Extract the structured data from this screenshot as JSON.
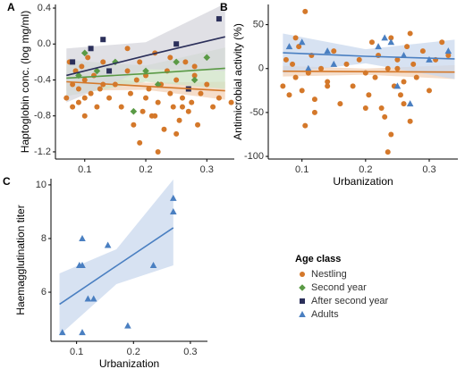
{
  "chart_data": [
    {
      "type": "scatter",
      "panel": "A",
      "ylabel": "Haptoglobin conc. (log mg/ml)",
      "xlim": [
        0.052,
        0.345
      ],
      "ylim": [
        -1.28,
        0.44
      ],
      "xticks": [
        0.1,
        0.2,
        0.3
      ],
      "yticks": [
        0.4,
        {
          "value": 0,
          "label": "0.0"
        },
        -0.4,
        -0.8,
        -1.2
      ],
      "series": [
        {
          "marker": "circle",
          "color": "#d4782a",
          "x": [
            0.07,
            0.075,
            0.08,
            0.08,
            0.085,
            0.09,
            0.09,
            0.095,
            0.1,
            0.1,
            0.105,
            0.11,
            0.115,
            0.12,
            0.125,
            0.13,
            0.14,
            0.15,
            0.16,
            0.17,
            0.175,
            0.18,
            0.185,
            0.19,
            0.195,
            0.2,
            0.2,
            0.205,
            0.21,
            0.215,
            0.22,
            0.225,
            0.23,
            0.235,
            0.24,
            0.245,
            0.25,
            0.255,
            0.26,
            0.265,
            0.27,
            0.27,
            0.275,
            0.28,
            0.285,
            0.29,
            0.3,
            0.31,
            0.32,
            0.34,
            0.19,
            0.22,
            0.25,
            0.28,
            0.17,
            0.215,
            0.24,
            0.26,
            0.1,
            0.13
          ],
          "values": [
            -0.6,
            -0.2,
            -0.45,
            -0.7,
            -0.3,
            -0.5,
            -0.65,
            -0.25,
            -0.4,
            -0.6,
            -0.15,
            -0.55,
            -0.35,
            -0.7,
            -0.5,
            -0.2,
            -0.6,
            -0.45,
            -0.7,
            -0.3,
            -0.55,
            -0.9,
            -0.4,
            -0.2,
            -0.75,
            -0.6,
            -0.35,
            -0.5,
            -0.8,
            -0.1,
            -0.65,
            -0.45,
            -0.95,
            -0.3,
            -0.55,
            -0.7,
            -0.4,
            -0.85,
            -0.6,
            -0.2,
            -0.5,
            -0.75,
            -0.65,
            -0.35,
            -0.9,
            -0.55,
            -0.45,
            -0.7,
            -0.6,
            -0.65,
            -1.1,
            -1.2,
            -1.0,
            -0.25,
            -0.05,
            -0.8,
            -0.15,
            -0.7,
            -0.8,
            -0.45
          ],
          "fit": {
            "x": [
              0.07,
              0.2,
              0.33
            ],
            "y": [
              -0.42,
              -0.47,
              -0.52
            ],
            "lower": [
              -0.52,
              -0.51,
              -0.62
            ],
            "upper": [
              -0.32,
              -0.43,
              -0.42
            ],
            "band": "#f2d2b8"
          }
        },
        {
          "marker": "diamond",
          "color": "#5a9a45",
          "x": [
            0.09,
            0.1,
            0.12,
            0.15,
            0.18,
            0.2,
            0.22,
            0.25,
            0.28,
            0.3
          ],
          "values": [
            -0.35,
            -0.1,
            -0.3,
            -0.2,
            -0.75,
            -0.3,
            -0.45,
            -0.2,
            -0.4,
            -0.15
          ],
          "fit": {
            "x": [
              0.07,
              0.2,
              0.33
            ],
            "y": [
              -0.38,
              -0.33,
              -0.27
            ],
            "lower": [
              -0.58,
              -0.42,
              -0.5
            ],
            "upper": [
              -0.18,
              -0.24,
              -0.04
            ],
            "band": "#cfe3c6"
          }
        },
        {
          "marker": "square",
          "color": "#2b2f5a",
          "x": [
            0.08,
            0.11,
            0.13,
            0.14,
            0.25,
            0.27,
            0.32
          ],
          "values": [
            -0.2,
            -0.05,
            0.05,
            -0.3,
            0.0,
            -0.5,
            0.28
          ],
          "fit": {
            "x": [
              0.07,
              0.2,
              0.33
            ],
            "y": [
              -0.35,
              -0.13,
              0.08
            ],
            "lower": [
              -0.65,
              -0.28,
              -0.3
            ],
            "upper": [
              -0.05,
              0.02,
              0.45
            ],
            "band": "#d6d6dc"
          }
        }
      ]
    },
    {
      "type": "scatter",
      "panel": "B",
      "ylabel": "Antimicrobial activity (%)",
      "xlabel": "Urbanization",
      "xlim": [
        0.047,
        0.345
      ],
      "ylim": [
        -103,
        73
      ],
      "xticks": [
        0.1,
        0.2,
        0.3
      ],
      "yticks": [
        50,
        0,
        -50,
        -100
      ],
      "series": [
        {
          "marker": "circle",
          "color": "#d4782a",
          "x": [
            0.07,
            0.075,
            0.08,
            0.085,
            0.09,
            0.095,
            0.1,
            0.105,
            0.11,
            0.115,
            0.12,
            0.13,
            0.14,
            0.15,
            0.16,
            0.17,
            0.18,
            0.19,
            0.2,
            0.205,
            0.21,
            0.215,
            0.22,
            0.225,
            0.23,
            0.235,
            0.24,
            0.245,
            0.25,
            0.255,
            0.26,
            0.265,
            0.27,
            0.275,
            0.28,
            0.29,
            0.3,
            0.31,
            0.32,
            0.33,
            0.105,
            0.12,
            0.235,
            0.24,
            0.26,
            0.27,
            0.09,
            0.2,
            0.25,
            0.14
          ],
          "values": [
            -20,
            10,
            -30,
            5,
            -10,
            25,
            -25,
            65,
            -5,
            15,
            -35,
            0,
            -15,
            20,
            -40,
            5,
            -20,
            10,
            -5,
            -30,
            30,
            -10,
            15,
            -45,
            -55,
            0,
            35,
            -20,
            10,
            -30,
            -15,
            25,
            -60,
            5,
            -10,
            20,
            -25,
            10,
            30,
            15,
            -65,
            -50,
            -95,
            -75,
            -40,
            40,
            35,
            -45,
            0,
            -20
          ],
          "fit": {
            "x": [
              0.07,
              0.2,
              0.34
            ],
            "y": [
              -3,
              -3.5,
              -4
            ],
            "lower": [
              -9,
              -7,
              -12
            ],
            "upper": [
              3,
              0,
              4
            ],
            "band": "#f2d2b8"
          }
        },
        {
          "marker": "triangle",
          "color": "#4a7fc1",
          "x": [
            0.08,
            0.1,
            0.11,
            0.14,
            0.15,
            0.22,
            0.23,
            0.24,
            0.25,
            0.26,
            0.27,
            0.3,
            0.33
          ],
          "values": [
            25,
            30,
            0,
            20,
            5,
            25,
            35,
            30,
            -20,
            15,
            -40,
            10,
            20
          ],
          "fit": {
            "x": [
              0.07,
              0.2,
              0.34
            ],
            "y": [
              18,
              14,
              11
            ],
            "lower": [
              -5,
              6,
              -12
            ],
            "upper": [
              40,
              22,
              33
            ],
            "band": "#c9d8ee"
          }
        }
      ]
    },
    {
      "type": "scatter",
      "panel": "C",
      "ylabel": "Haemagglutination titer",
      "xlabel": "Urbanization",
      "xlim": [
        0.055,
        0.33
      ],
      "ylim": [
        4.17,
        10.23
      ],
      "xticks": [
        0.1,
        0.2,
        0.3
      ],
      "yticks": [
        6,
        8,
        10
      ],
      "series": [
        {
          "marker": "triangle",
          "color": "#4a7fc1",
          "x": [
            0.075,
            0.105,
            0.11,
            0.11,
            0.11,
            0.12,
            0.13,
            0.155,
            0.19,
            0.235,
            0.27,
            0.27
          ],
          "values": [
            4.5,
            7.0,
            7.0,
            8.0,
            4.5,
            5.75,
            5.75,
            7.75,
            4.75,
            7.0,
            9.5,
            9.0
          ],
          "fit": {
            "x": [
              0.07,
              0.17,
              0.27
            ],
            "y": [
              5.55,
              6.98,
              8.4
            ],
            "lower": [
              4.4,
              6.3,
              7.0
            ],
            "upper": [
              6.7,
              7.6,
              10.2
            ],
            "band": "#c9d8ee"
          }
        }
      ]
    }
  ],
  "legend": {
    "title": "Age class",
    "entries": [
      {
        "name": "Nestling",
        "marker": "circle",
        "color": "#d4782a"
      },
      {
        "name": "Second year",
        "marker": "diamond",
        "color": "#5a9a45"
      },
      {
        "name": "After second year",
        "marker": "square",
        "color": "#2b2f5a"
      },
      {
        "name": "Adults",
        "marker": "triangle",
        "color": "#4a7fc1"
      }
    ]
  }
}
